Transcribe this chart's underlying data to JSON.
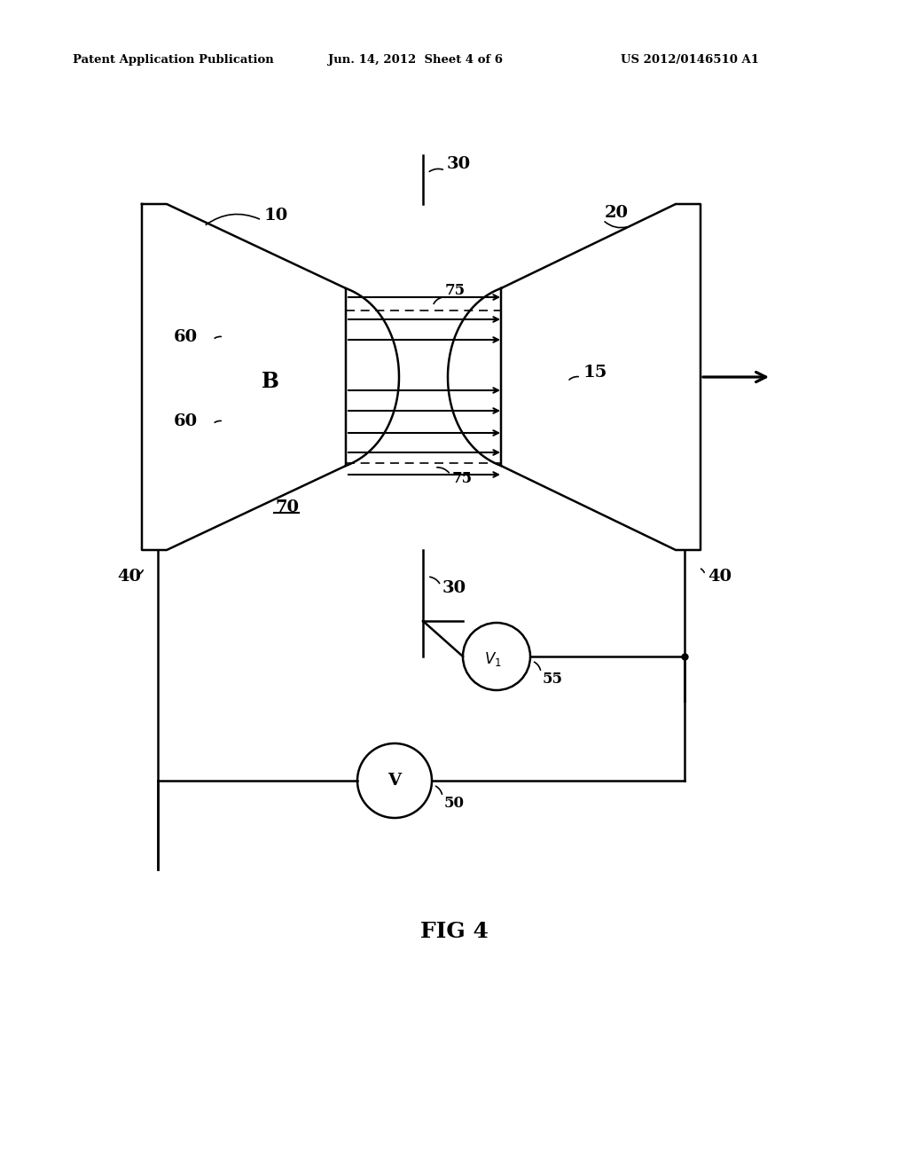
{
  "bg_color": "#ffffff",
  "header_left": "Patent Application Publication",
  "header_center": "Jun. 14, 2012  Sheet 4 of 6",
  "header_right": "US 2012/0146510 A1",
  "fig_label": "FIG 4",
  "lw": 1.8,
  "black": "#000000"
}
